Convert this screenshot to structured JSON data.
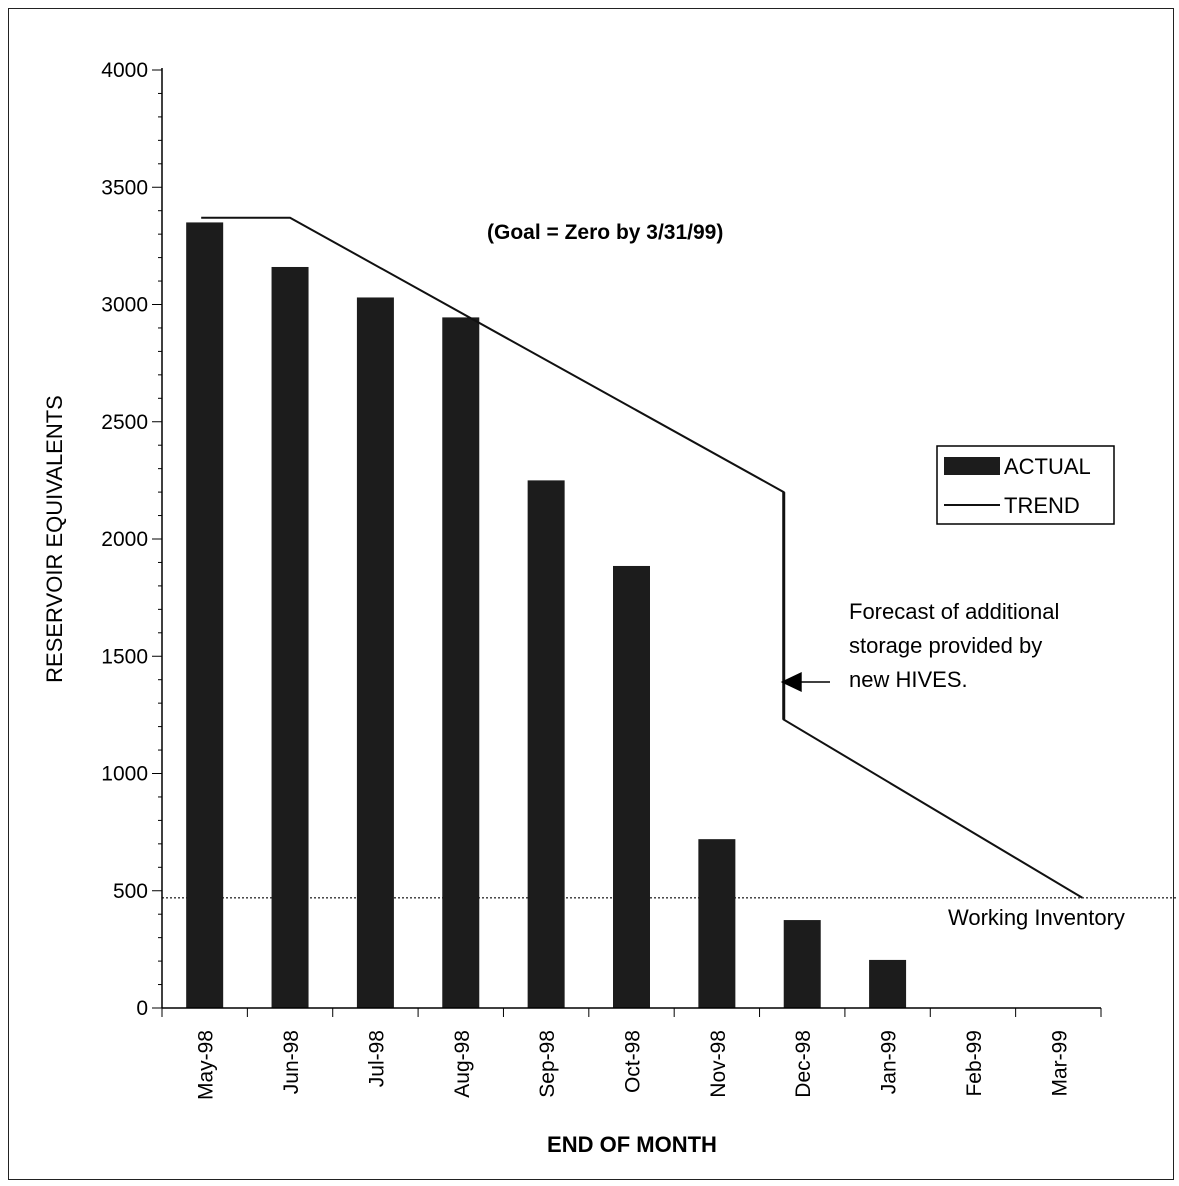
{
  "colors": {
    "bar": "#1c1c1c",
    "trend": "#111111",
    "working_inventory": "#333333",
    "axis": "#000000",
    "background": "#ffffff"
  },
  "chart_data": {
    "type": "bar",
    "title": "",
    "xlabel": "END OF MONTH",
    "ylabel": "RESERVOIR EQUIVALENTS",
    "ylim": [
      0,
      4000
    ],
    "y_ticks": [
      0,
      500,
      1000,
      1500,
      2000,
      2500,
      3000,
      3500,
      4000
    ],
    "y_minor_step": 100,
    "grid": false,
    "categories": [
      "May-98",
      "Jun-98",
      "Jul-98",
      "Aug-98",
      "Sep-98",
      "Oct-98",
      "Nov-98",
      "Dec-98",
      "Jan-99",
      "Feb-99",
      "Mar-99"
    ],
    "series": [
      {
        "name": "ACTUAL",
        "kind": "bar",
        "values": [
          3350,
          3160,
          3030,
          2945,
          2250,
          1885,
          720,
          375,
          205,
          0,
          0
        ]
      },
      {
        "name": "TREND",
        "kind": "line",
        "points": [
          {
            "x": "May-98",
            "y": 3370
          },
          {
            "x": "Jun-98",
            "y": 3370
          },
          {
            "x": "Nov-98",
            "y": 2200
          },
          {
            "x": "Nov-98",
            "y": 2200
          },
          {
            "x": "Dec-98",
            "y": 1230
          },
          {
            "x": "Mar-99",
            "y": 470
          }
        ]
      }
    ],
    "reference_lines": [
      {
        "label": "Working Inventory",
        "y": 470,
        "style": "dotted"
      }
    ],
    "annotations": {
      "goal": "(Goal = Zero by 3/31/99)",
      "forecast_lines": [
        "Forecast of additional",
        "storage provided by",
        "new HIVES."
      ]
    },
    "legend": {
      "position": "right",
      "entries": [
        {
          "label": "ACTUAL",
          "kind": "bar"
        },
        {
          "label": "TREND",
          "kind": "line"
        }
      ]
    }
  }
}
